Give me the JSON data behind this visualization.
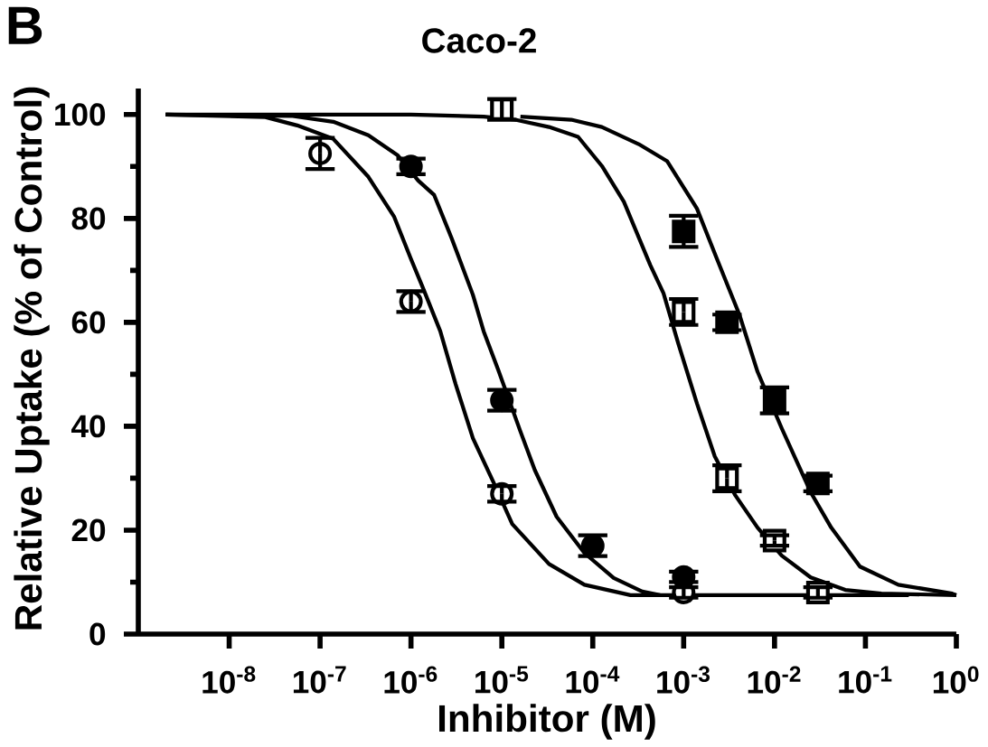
{
  "chart_data": {
    "type": "scatter",
    "title": "Caco-2",
    "xlabel": "Inhibitor (M)",
    "ylabel": "Relative Uptake (% of Control)",
    "annotations": [
      "B"
    ],
    "log": "x",
    "xlim": [
      1e-09,
      1
    ],
    "ylim": [
      0,
      105
    ],
    "xticks": [
      {
        "value": 1e-08,
        "label": "10$^{-8}$"
      },
      {
        "value": 1e-07,
        "label": "10$^{-7}$"
      },
      {
        "value": 1e-06,
        "label": "10$^{-6}$"
      },
      {
        "value": 1e-05,
        "label": "10$^{-5}$"
      },
      {
        "value": 0.0001,
        "label": "10$^{-4}$"
      },
      {
        "value": 0.001,
        "label": "10$^{-3}$"
      },
      {
        "value": 0.01,
        "label": "10$^{-2}$"
      },
      {
        "value": 0.1,
        "label": "10$^{-1}$"
      },
      {
        "value": 1,
        "label": "10$^{0}$"
      }
    ],
    "yticks": [
      0,
      {
        "value": 10,
        "label": null
      },
      20,
      {
        "value": 30,
        "label": null
      },
      40,
      {
        "value": 50,
        "label": null
      },
      60,
      {
        "value": 70,
        "label": null
      },
      80,
      {
        "value": 90,
        "label": null
      },
      100
    ],
    "series": [
      {
        "type": "line",
        "color": "#000000",
        "line_style": "solid",
        "x": [
          2e-09,
          2.5e-08,
          5.6e-08,
          1.4e-07,
          3.4e-07,
          6.5e-07,
          1e-06,
          1.35e-06,
          2.1e-06,
          3.1e-06,
          4.8e-06,
          8.3e-06,
          1.3e-05,
          3.3e-05,
          8.1e-05,
          0.00026,
          0.3
        ],
        "values": [
          100,
          99.5,
          97.9,
          95.3,
          88,
          80.4,
          72.2,
          66.7,
          58.3,
          48.1,
          37.7,
          28.8,
          21.2,
          13.5,
          9.5,
          7.5,
          7.5
        ]
      },
      {
        "type": "line",
        "color": "#000000",
        "line_style": "solid",
        "x": [
          2e-09,
          5e-08,
          1.4e-07,
          3.4e-07,
          7.1e-07,
          1.2e-06,
          1.8e-06,
          2.8e-06,
          4.8e-06,
          6.3e-06,
          9.1e-06,
          1.6e-05,
          2.3e-05,
          4e-05,
          8.1e-05,
          0.00017,
          0.00035,
          0.00055
        ],
        "values": [
          100,
          99.7,
          98.6,
          96,
          92.2,
          87.3,
          84.5,
          76.2,
          65.3,
          58.3,
          50.9,
          39,
          31.6,
          22.6,
          15.6,
          10.8,
          8.2,
          7.5
        ]
      },
      {
        "type": "line",
        "color": "#000000",
        "line_style": "solid",
        "x": [
          2e-09,
          1e-06,
          6.3e-06,
          1.4e-05,
          3.3e-05,
          6.9e-05,
          0.000126,
          0.00022,
          0.00043,
          0.0006,
          0.00087,
          0.0014,
          0.0022,
          0.0037,
          0.0065,
          0.012,
          0.025,
          0.06,
          0.15,
          1
        ],
        "values": [
          100,
          100,
          99.6,
          99,
          97.6,
          95.7,
          90.1,
          83.2,
          71,
          65.6,
          56,
          44.4,
          34.2,
          26.7,
          20.5,
          15.1,
          10.9,
          8.5,
          7.8,
          7.5
        ]
      },
      {
        "type": "line",
        "color": "#000000",
        "line_style": "solid",
        "x": [
          1.6e-05,
          5.8e-05,
          0.000126,
          0.00032,
          0.00066,
          0.0014,
          0.0023,
          0.0041,
          0.0065,
          0.012,
          0.025,
          0.042,
          0.087,
          0.23,
          0.9,
          1
        ],
        "values": [
          99.6,
          99,
          97.6,
          94.3,
          91,
          81.9,
          72.4,
          61.5,
          50.5,
          39.6,
          27.3,
          20.5,
          13,
          9.5,
          7.8,
          7.5
        ]
      },
      {
        "type": "scatter",
        "marker": "circle",
        "color": "#ffffff",
        "x": [
          1e-07,
          1e-06,
          1e-05,
          0.001
        ],
        "values": [
          92.5,
          64,
          27,
          8
        ],
        "errors": [
          3,
          2,
          1.5,
          1
        ]
      },
      {
        "type": "scatter",
        "marker": "circle",
        "color": "#000000",
        "x": [
          1e-06,
          1e-05,
          0.0001,
          0.001
        ],
        "values": [
          90,
          45,
          17,
          11
        ],
        "errors": [
          1.5,
          2,
          2,
          1
        ]
      },
      {
        "type": "scatter",
        "marker": "square",
        "color": "#ffffff",
        "x": [
          1e-05,
          0.001,
          0.003,
          0.01,
          0.03
        ],
        "values": [
          101,
          62,
          30,
          18,
          8
        ],
        "errors": [
          2,
          2.5,
          2.5,
          1,
          1
        ]
      },
      {
        "type": "scatter",
        "marker": "square",
        "color": "#000000",
        "x": [
          0.001,
          0.003,
          0.01,
          0.03
        ],
        "values": [
          77.5,
          60,
          45,
          29
        ],
        "errors": [
          3,
          1.5,
          2.5,
          1.5
        ]
      }
    ]
  }
}
